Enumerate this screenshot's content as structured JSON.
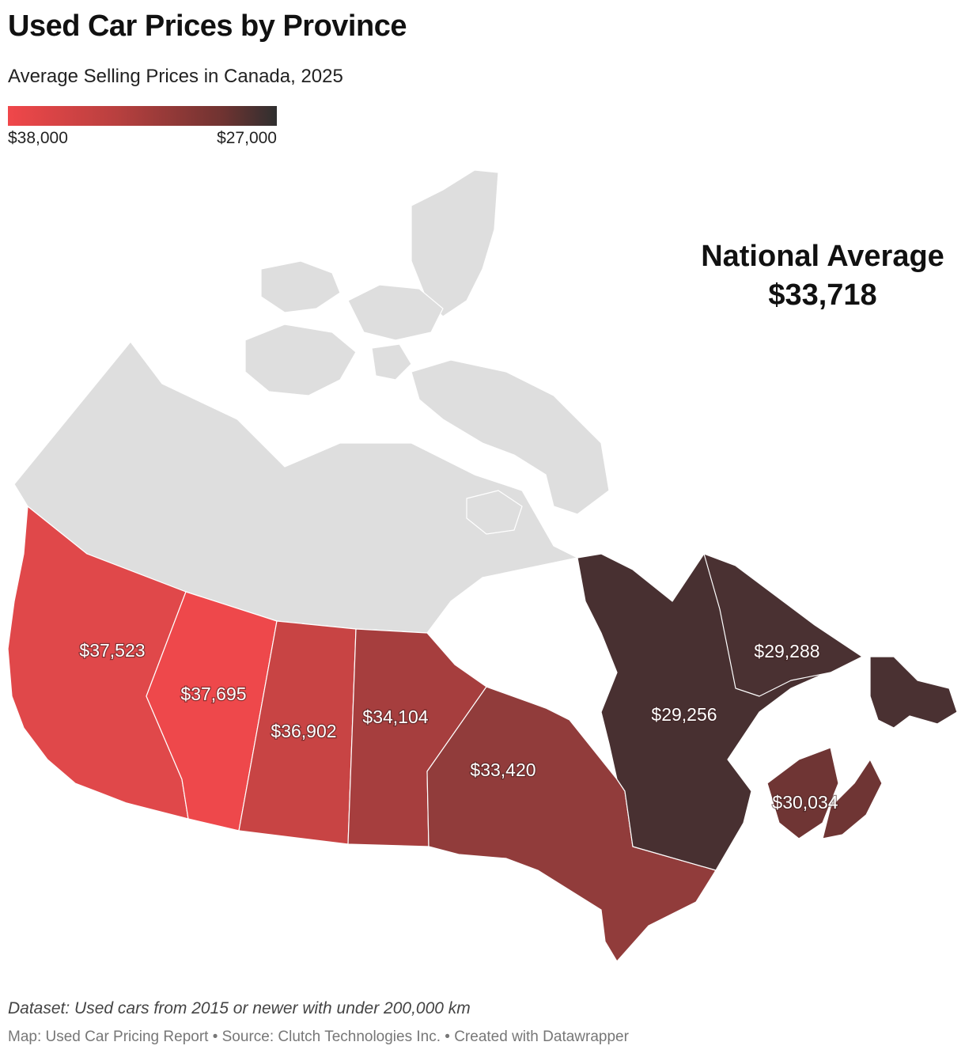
{
  "title": "Used Car Prices by Province",
  "subtitle": "Average Selling Prices in Canada, 2025",
  "legend": {
    "min_label": "$38,000",
    "max_label": "$27,000",
    "color_low_value": "#f0474a",
    "color_high_value": "#2f2f2f"
  },
  "national_average": {
    "label": "National Average",
    "value": "$33,718"
  },
  "provinces": {
    "bc": {
      "label": "$37,523",
      "color": "#e0484a"
    },
    "ab": {
      "label": "$37,695",
      "color": "#ee484b"
    },
    "sk": {
      "label": "$36,902",
      "color": "#c84444"
    },
    "mb": {
      "label": "$34,104",
      "color": "#a63e3e"
    },
    "on": {
      "label": "$33,420",
      "color": "#913c3b"
    },
    "qc": {
      "label": "$29,256",
      "color": "#483031"
    },
    "nl": {
      "label": "$29,288",
      "color": "#4a3132"
    },
    "mar": {
      "label": "$30,034",
      "color": "#6f3534"
    }
  },
  "territories_color": "#dedede",
  "footer": {
    "dataset_note": "Dataset: Used cars from 2015 or newer with under 200,000 km",
    "credits": "Map: Used Car Pricing Report • Source: Clutch Technologies Inc. • Created with Datawrapper"
  }
}
